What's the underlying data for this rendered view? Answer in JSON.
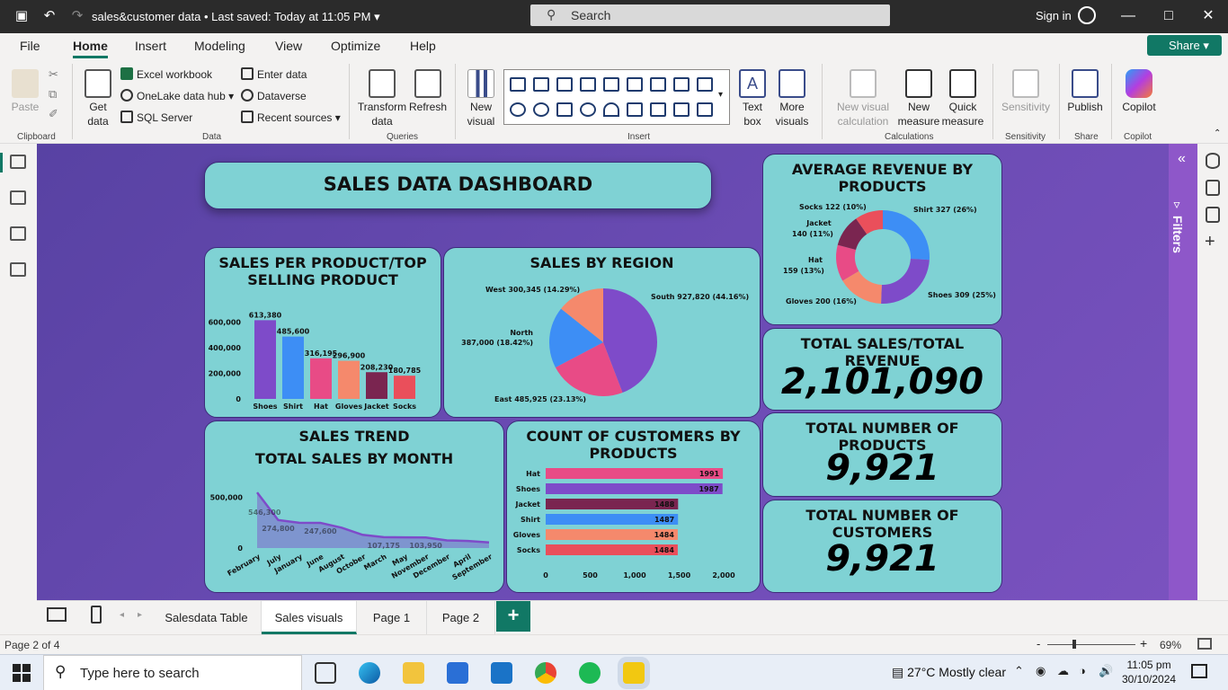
{
  "titlebar": {
    "doc_title": "sales&customer data • Last saved: Today at 11:05 PM",
    "search_placeholder": "Search",
    "sign_in": "Sign in"
  },
  "menu": {
    "tabs": [
      "File",
      "Home",
      "Insert",
      "Modeling",
      "View",
      "Optimize",
      "Help"
    ],
    "share": "Share"
  },
  "ribbon": {
    "paste": "Paste",
    "clipboard": "Clipboard",
    "get_data": "Get data",
    "excel": "Excel workbook",
    "onelake": "OneLake data hub",
    "sql": "SQL Server",
    "enter_data": "Enter data",
    "dataverse": "Dataverse",
    "recent_sources": "Recent sources",
    "data": "Data",
    "transform": "Transform data",
    "refresh": "Refresh",
    "queries": "Queries",
    "new_visual": "New visual",
    "text_box": "Text box",
    "more_visuals": "More visuals",
    "insert": "Insert",
    "new_visual_calc": "New visual calculation",
    "new_measure": "New measure",
    "quick_measure": "Quick measure",
    "calculations": "Calculations",
    "sensitivity_btn": "Sensitivity",
    "sensitivity": "Sensitivity",
    "publish": "Publish",
    "share_grp": "Share",
    "copilot_btn": "Copilot",
    "copilot": "Copilot"
  },
  "filters": {
    "label": "Filters"
  },
  "dashboard": {
    "title": "SALES DATA DASHBOARD",
    "kpi_sales_title": "TOTAL SALES/TOTAL REVENUE",
    "kpi_sales_value": "2,101,090",
    "kpi_products_title": "TOTAL NUMBER OF PRODUCTS",
    "kpi_products_value": "9,921",
    "kpi_customers_title": "TOTAL NUMBER OF CUSTOMERS",
    "kpi_customers_value": "9,921"
  },
  "chart_data": [
    {
      "id": "sales_per_product",
      "type": "bar",
      "title": "SALES PER PRODUCT/TOP SELLING PRODUCT",
      "categories": [
        "Shoes",
        "Shirt",
        "Hat",
        "Gloves",
        "Jacket",
        "Socks"
      ],
      "values": [
        613380,
        485600,
        316195,
        296900,
        208230,
        180785
      ],
      "value_labels": [
        "613,380",
        "485,600",
        "316,195",
        "296,900",
        "208,230",
        "180,785"
      ],
      "yticks": [
        "0",
        "200,000",
        "400,000",
        "600,000"
      ],
      "ylim": [
        0,
        700000
      ],
      "colors": [
        "#7e4bc9",
        "#3d8ef5",
        "#e84b86",
        "#f5896c",
        "#7a2550",
        "#ea4f5b"
      ]
    },
    {
      "id": "sales_by_region",
      "type": "pie",
      "title": "SALES BY REGION",
      "labels": [
        "South",
        "East",
        "North",
        "West"
      ],
      "values": [
        927820,
        485925,
        387000,
        300345
      ],
      "value_labels": [
        "South 927,820 (44.16%)",
        "East 485,925 (23.13%)",
        "North 387,000 (18.42%)",
        "West 300,345 (14.29%)"
      ],
      "colors": [
        "#7e4bc9",
        "#e84b86",
        "#3d8ef5",
        "#f5896c"
      ]
    },
    {
      "id": "avg_revenue_by_products",
      "type": "pie",
      "title": "AVERAGE REVENUE BY PRODUCTS",
      "labels": [
        "Shirt",
        "Shoes",
        "Gloves",
        "Hat",
        "Jacket",
        "Socks"
      ],
      "values": [
        327,
        309,
        200,
        159,
        140,
        122
      ],
      "value_labels": [
        "Shirt 327 (26%)",
        "Shoes 309 (25%)",
        "Gloves 200 (16%)",
        "Hat 159 (13%)",
        "Jacket 140 (11%)",
        "Socks 122 (10%)"
      ],
      "colors": [
        "#3d8ef5",
        "#7e4bc9",
        "#f5896c",
        "#e84b86",
        "#7a2550",
        "#ea4f5b"
      ]
    },
    {
      "id": "sales_trend",
      "type": "area",
      "title": "SALES TREND",
      "subtitle": "TOTAL SALES BY MONTH",
      "categories": [
        "February",
        "July",
        "January",
        "June",
        "August",
        "October",
        "March",
        "May",
        "November",
        "December",
        "April",
        "September"
      ],
      "values": [
        546300,
        274800,
        248000,
        247600,
        200000,
        130000,
        107175,
        105000,
        103950,
        75000,
        70000,
        55000
      ],
      "data_labels": {
        "1": "274,800",
        "3": "247,600",
        "6": "107,175",
        "8": "103,950"
      },
      "peak_label": "546,300",
      "yticks": [
        "0",
        "500,000"
      ],
      "ylim": [
        0,
        600000
      ],
      "color": "#7e4bc9"
    },
    {
      "id": "customers_by_products",
      "type": "bar",
      "orientation": "horizontal",
      "title": "COUNT OF CUSTOMERS BY PRODUCTS",
      "categories": [
        "Hat",
        "Shoes",
        "Jacket",
        "Shirt",
        "Gloves",
        "Socks"
      ],
      "values": [
        1991,
        1987,
        1488,
        1487,
        1484,
        1484
      ],
      "xticks": [
        "0",
        "500",
        "1,000",
        "1,500",
        "2,000"
      ],
      "xlim": [
        0,
        2000
      ],
      "colors": [
        "#e84b86",
        "#7e4bc9",
        "#7a2550",
        "#3d8ef5",
        "#f5896c",
        "#ea4f5b"
      ]
    }
  ],
  "pages": {
    "tabs": [
      "Salesdata Table",
      "Sales visuals",
      "Page 1",
      "Page 2"
    ],
    "active": "Sales visuals"
  },
  "status": {
    "page_indicator": "Page 2 of 4",
    "zoom": "69%"
  },
  "taskbar": {
    "search_placeholder": "Type here to search",
    "weather": "27°C  Mostly clear",
    "time": "11:05 pm",
    "date": "30/10/2024"
  }
}
